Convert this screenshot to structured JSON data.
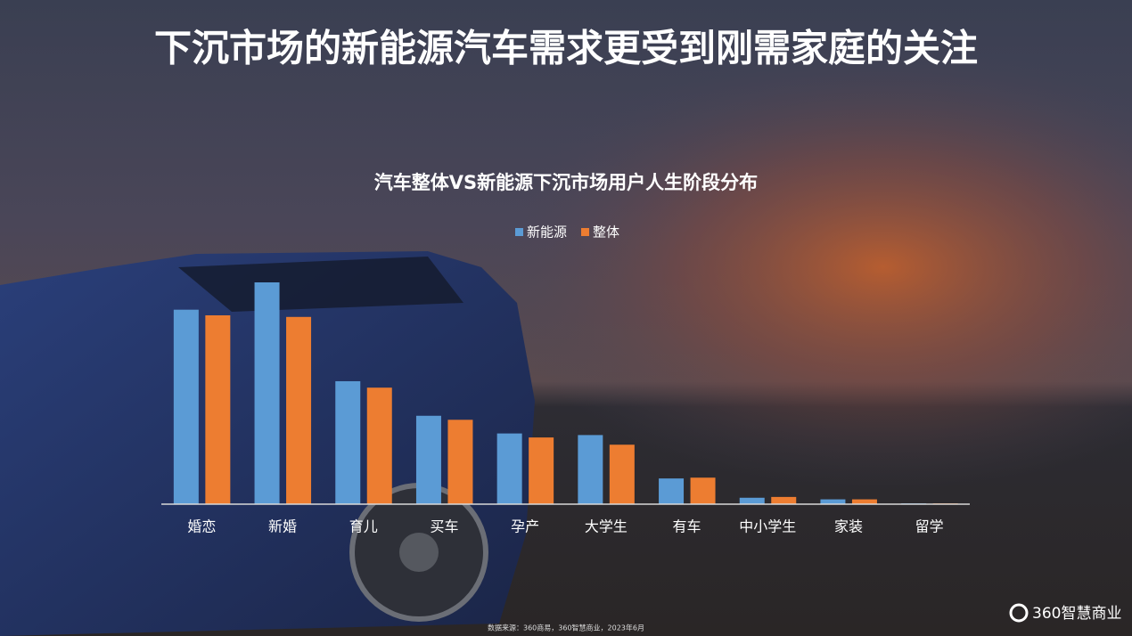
{
  "header": {
    "title": "下沉市场的新能源汽车需求更受到刚需家庭的关注"
  },
  "chart_data": {
    "type": "bar",
    "title": "汽车整体VS新能源下沉市场用户人生阶段分布",
    "categories": [
      "婚恋",
      "新婚",
      "育儿",
      "买车",
      "孕产",
      "大学生",
      "有车",
      "中小学生",
      "家装",
      "留学"
    ],
    "series": [
      {
        "name": "新能源",
        "color": "#5b9bd5",
        "values": [
          24.2,
          27.6,
          15.3,
          11.0,
          8.8,
          8.6,
          3.2,
          0.8,
          0.6,
          0.1
        ]
      },
      {
        "name": "整体",
        "color": "#ed7d31",
        "values": [
          23.5,
          23.3,
          14.5,
          10.5,
          8.3,
          7.4,
          3.3,
          0.9,
          0.6,
          0.1
        ]
      }
    ],
    "legend": "top"
  },
  "footer": {
    "source": "数据来源：360商易，360智慧商业，2023年6月",
    "logo": "360智慧商业"
  }
}
